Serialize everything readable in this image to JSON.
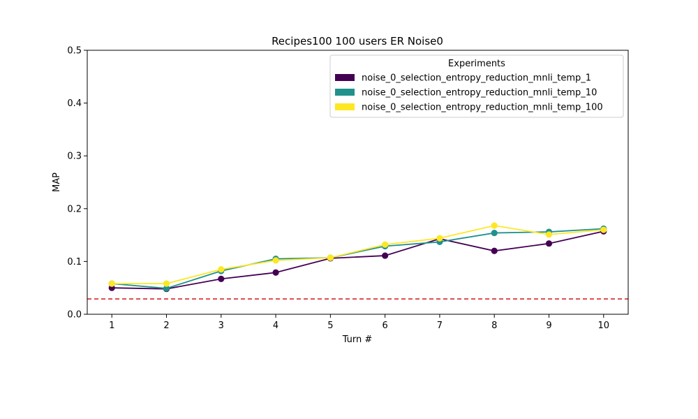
{
  "chart_data": {
    "type": "line",
    "title": "Recipes100 100 users ER Noise0",
    "xlabel": "Turn #",
    "ylabel": "MAP",
    "x": [
      1,
      2,
      3,
      4,
      5,
      6,
      7,
      8,
      9,
      10
    ],
    "xlim": [
      0.55,
      10.45
    ],
    "ylim": [
      0,
      0.5
    ],
    "yticks": [
      "0.0",
      "0.1",
      "0.2",
      "0.3",
      "0.4",
      "0.5"
    ],
    "legend": {
      "title": "Experiments",
      "placement": "top-right"
    },
    "baseline": {
      "value": 0.029,
      "color": "#d62728",
      "style": "dashed"
    },
    "series": [
      {
        "name": "noise_0_selection_entropy_reduction_mnli_temp_1",
        "color": "#440154",
        "values": [
          0.05,
          0.048,
          0.067,
          0.079,
          0.106,
          0.111,
          0.143,
          0.12,
          0.134,
          0.157
        ]
      },
      {
        "name": "noise_0_selection_entropy_reduction_mnli_temp_10",
        "color": "#21918c",
        "values": [
          0.058,
          0.049,
          0.082,
          0.105,
          0.107,
          0.129,
          0.137,
          0.154,
          0.156,
          0.162
        ]
      },
      {
        "name": "noise_0_selection_entropy_reduction_mnli_temp_100",
        "color": "#fde725",
        "values": [
          0.058,
          0.058,
          0.085,
          0.102,
          0.107,
          0.132,
          0.144,
          0.168,
          0.151,
          0.16
        ]
      }
    ]
  }
}
